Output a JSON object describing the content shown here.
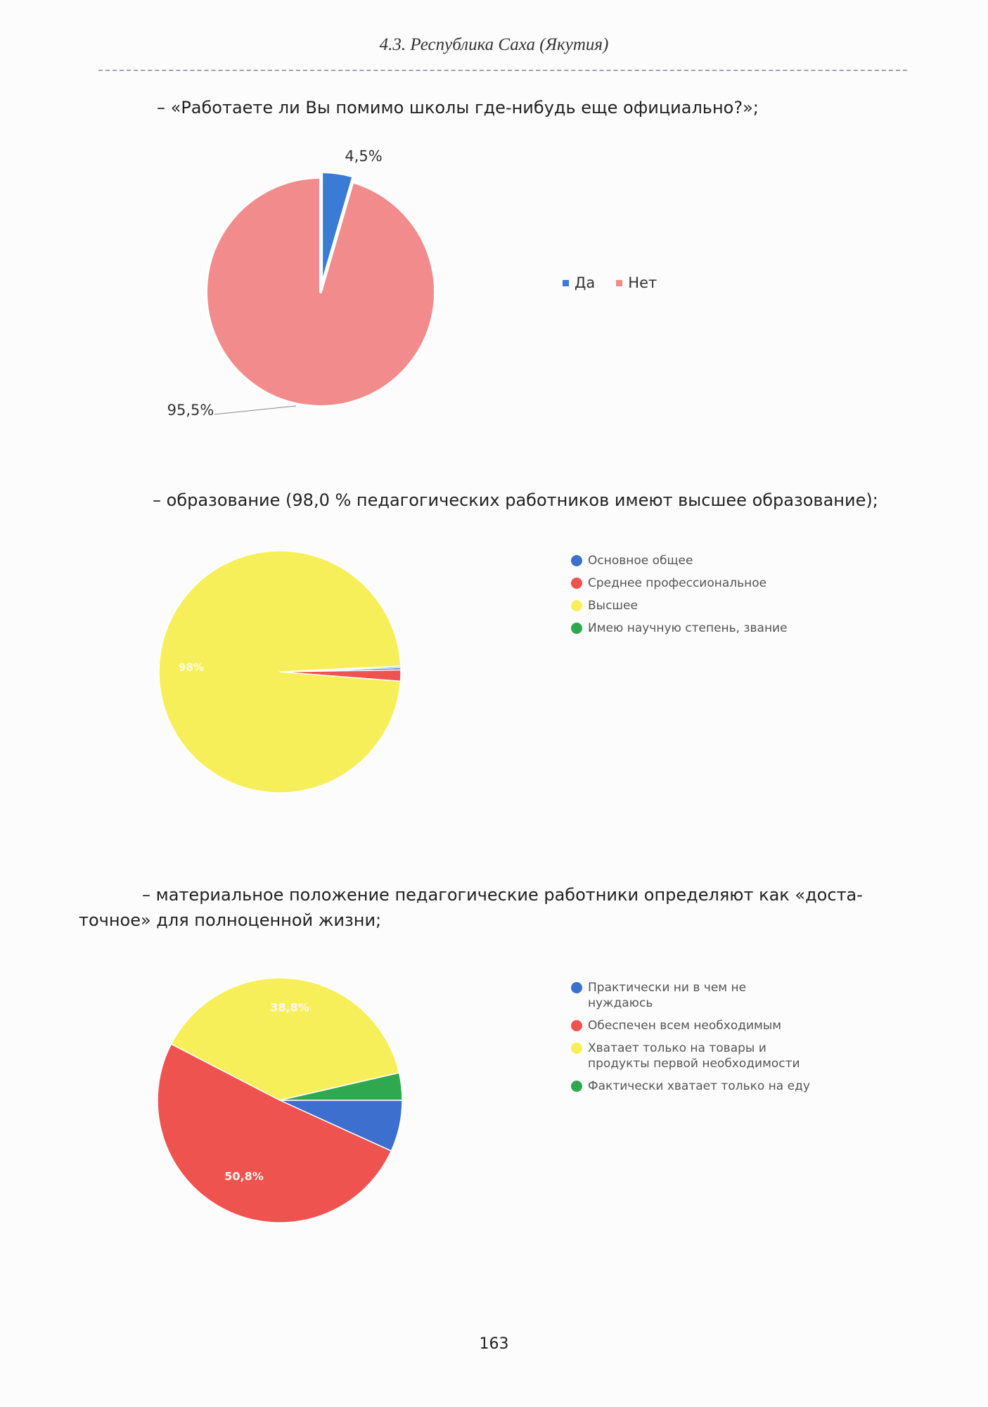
{
  "header": "4.3. Республика Саха (Якутия)",
  "paragraphs": [
    {
      "lines": [
        "– «Работаете ли Вы помимо школы где-нибудь еще официально?»;"
      ]
    },
    {
      "lines": [
        "– образование (98,0 % педагогических работников имеют высшее образование);"
      ]
    },
    {
      "lines": [
        "– материальное положение педагогические работники определяют как «доста-",
        "точное» для полноценной жизни;"
      ]
    }
  ],
  "chart_data": [
    {
      "type": "pie",
      "categories": [
        "Да",
        "Нет"
      ],
      "values": [
        4.5,
        95.5
      ],
      "value_labels": [
        "4,5%",
        "95,5%"
      ],
      "colors": [
        "#3a7bd5",
        "#f28b8b"
      ],
      "legend_marker": "square",
      "legend_layout": "horizontal"
    },
    {
      "type": "pie",
      "categories": [
        "Основное общее",
        "Среднее профессиональное",
        "Высшее",
        "Имею научную степень, звание"
      ],
      "values": [
        0.3,
        1.5,
        98.0,
        0.2
      ],
      "value_labels": [
        null,
        null,
        "98%",
        null
      ],
      "colors": [
        "#3d6fcf",
        "#ef5350",
        "#f7ef5a",
        "#2fa84f"
      ],
      "legend_marker": "circle",
      "legend_layout": "vertical"
    },
    {
      "type": "pie",
      "categories": [
        "Практически ни в чем не нуждаюсь",
        "Обеспечен всем необходимым",
        "Хватает только на товары и продукты первой необходимости",
        "Фактически хватает только на еду"
      ],
      "values": [
        6.8,
        50.8,
        38.8,
        3.6
      ],
      "value_labels": [
        null,
        "50,8%",
        "38,8%",
        null
      ],
      "colors": [
        "#3d6fcf",
        "#ef5350",
        "#f7ef5a",
        "#2fa84f"
      ],
      "legend_marker": "circle",
      "legend_layout": "vertical"
    }
  ],
  "page_number": "163"
}
